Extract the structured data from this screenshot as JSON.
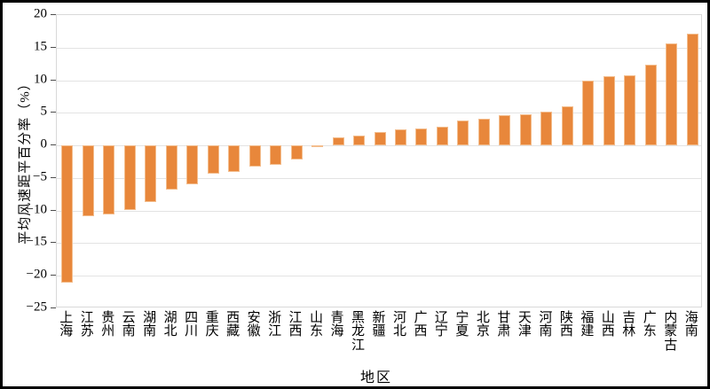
{
  "chart_data": {
    "type": "bar",
    "title": "",
    "xlabel": "地区",
    "ylabel": "平均风速距平百分率（%）",
    "categories": [
      "上海",
      "江苏",
      "贵州",
      "云南",
      "湖南",
      "湖北",
      "四川",
      "重庆",
      "西藏",
      "安徽",
      "浙江",
      "江西",
      "山东",
      "青海",
      "黑龙江",
      "新疆",
      "河北",
      "广西",
      "辽宁",
      "宁夏",
      "北京",
      "甘肃",
      "天津",
      "河南",
      "陕西",
      "福建",
      "山西",
      "吉林",
      "广东",
      "内蒙古",
      "海南"
    ],
    "values": [
      -21.1,
      -10.9,
      -10.6,
      -9.9,
      -8.7,
      -6.8,
      -5.9,
      -4.4,
      -4.1,
      -3.2,
      -3.0,
      -2.2,
      -0.2,
      1.3,
      1.5,
      2.0,
      2.4,
      2.6,
      2.9,
      3.8,
      4.1,
      4.7,
      4.8,
      5.2,
      6.0,
      10.0,
      10.6,
      10.8,
      12.4,
      15.6,
      17.1
    ],
    "ylim": [
      -25,
      20
    ],
    "yticks": [
      20,
      15,
      10,
      5,
      0,
      -5,
      -10,
      -15,
      -20,
      -25
    ],
    "yticklabels": [
      "20",
      "15",
      "10",
      "5",
      "0",
      "−5",
      "−10",
      "−15",
      "−20",
      "−25"
    ],
    "grid": "horizontal",
    "legend": "none",
    "bar_color": "#e8873b",
    "bar_edge_color": "#f3bd8d",
    "gridline_color": "#e3e3e3",
    "axis_box_color": "#d9d9d9"
  }
}
